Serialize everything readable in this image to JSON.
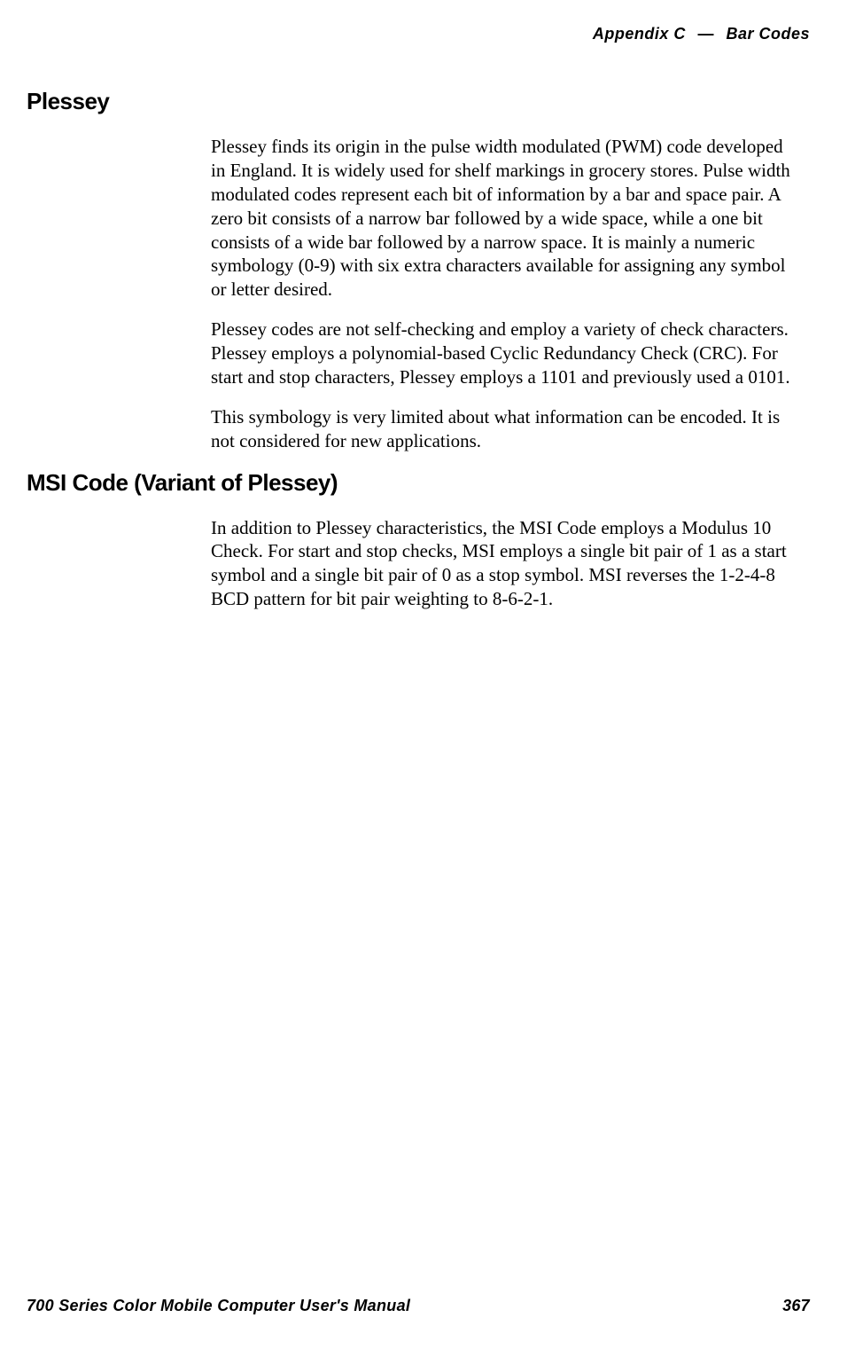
{
  "header": {
    "appendix": "Appendix C",
    "separator": "—",
    "title": "Bar Codes"
  },
  "sections": [
    {
      "heading": "Plessey",
      "paragraphs": [
        "Plessey finds its origin in the pulse width modulated (PWM) code developed in England. It is widely used for shelf markings in grocery stores. Pulse width modulated codes represent each bit of information by a bar and space pair. A zero bit consists of a narrow bar followed by a wide space, while a one bit consists of a wide bar followed by a narrow space. It is mainly a numeric symbology (0-9) with six extra characters available for assigning any symbol or letter desired.",
        "Plessey codes are not self-checking and employ a variety of check characters. Plessey employs a polynomial-based Cyclic Redundancy Check (CRC). For start and stop characters, Plessey employs a 1101 and previously used a 0101.",
        "This symbology is very limited about what information can be encoded. It is not considered for new applications."
      ]
    },
    {
      "heading": "MSI Code (Variant of Plessey)",
      "paragraphs": [
        "In addition to Plessey characteristics, the MSI Code employs a Modulus 10 Check. For start and stop checks, MSI employs a single bit pair of 1 as a start symbol and a single bit pair of 0 as a stop symbol. MSI reverses the 1-2-4-8 BCD pattern for bit pair weighting to 8-6-2-1."
      ]
    }
  ],
  "footer": {
    "manual_title": "700 Series Color Mobile Computer User's Manual",
    "page_number": "367"
  }
}
